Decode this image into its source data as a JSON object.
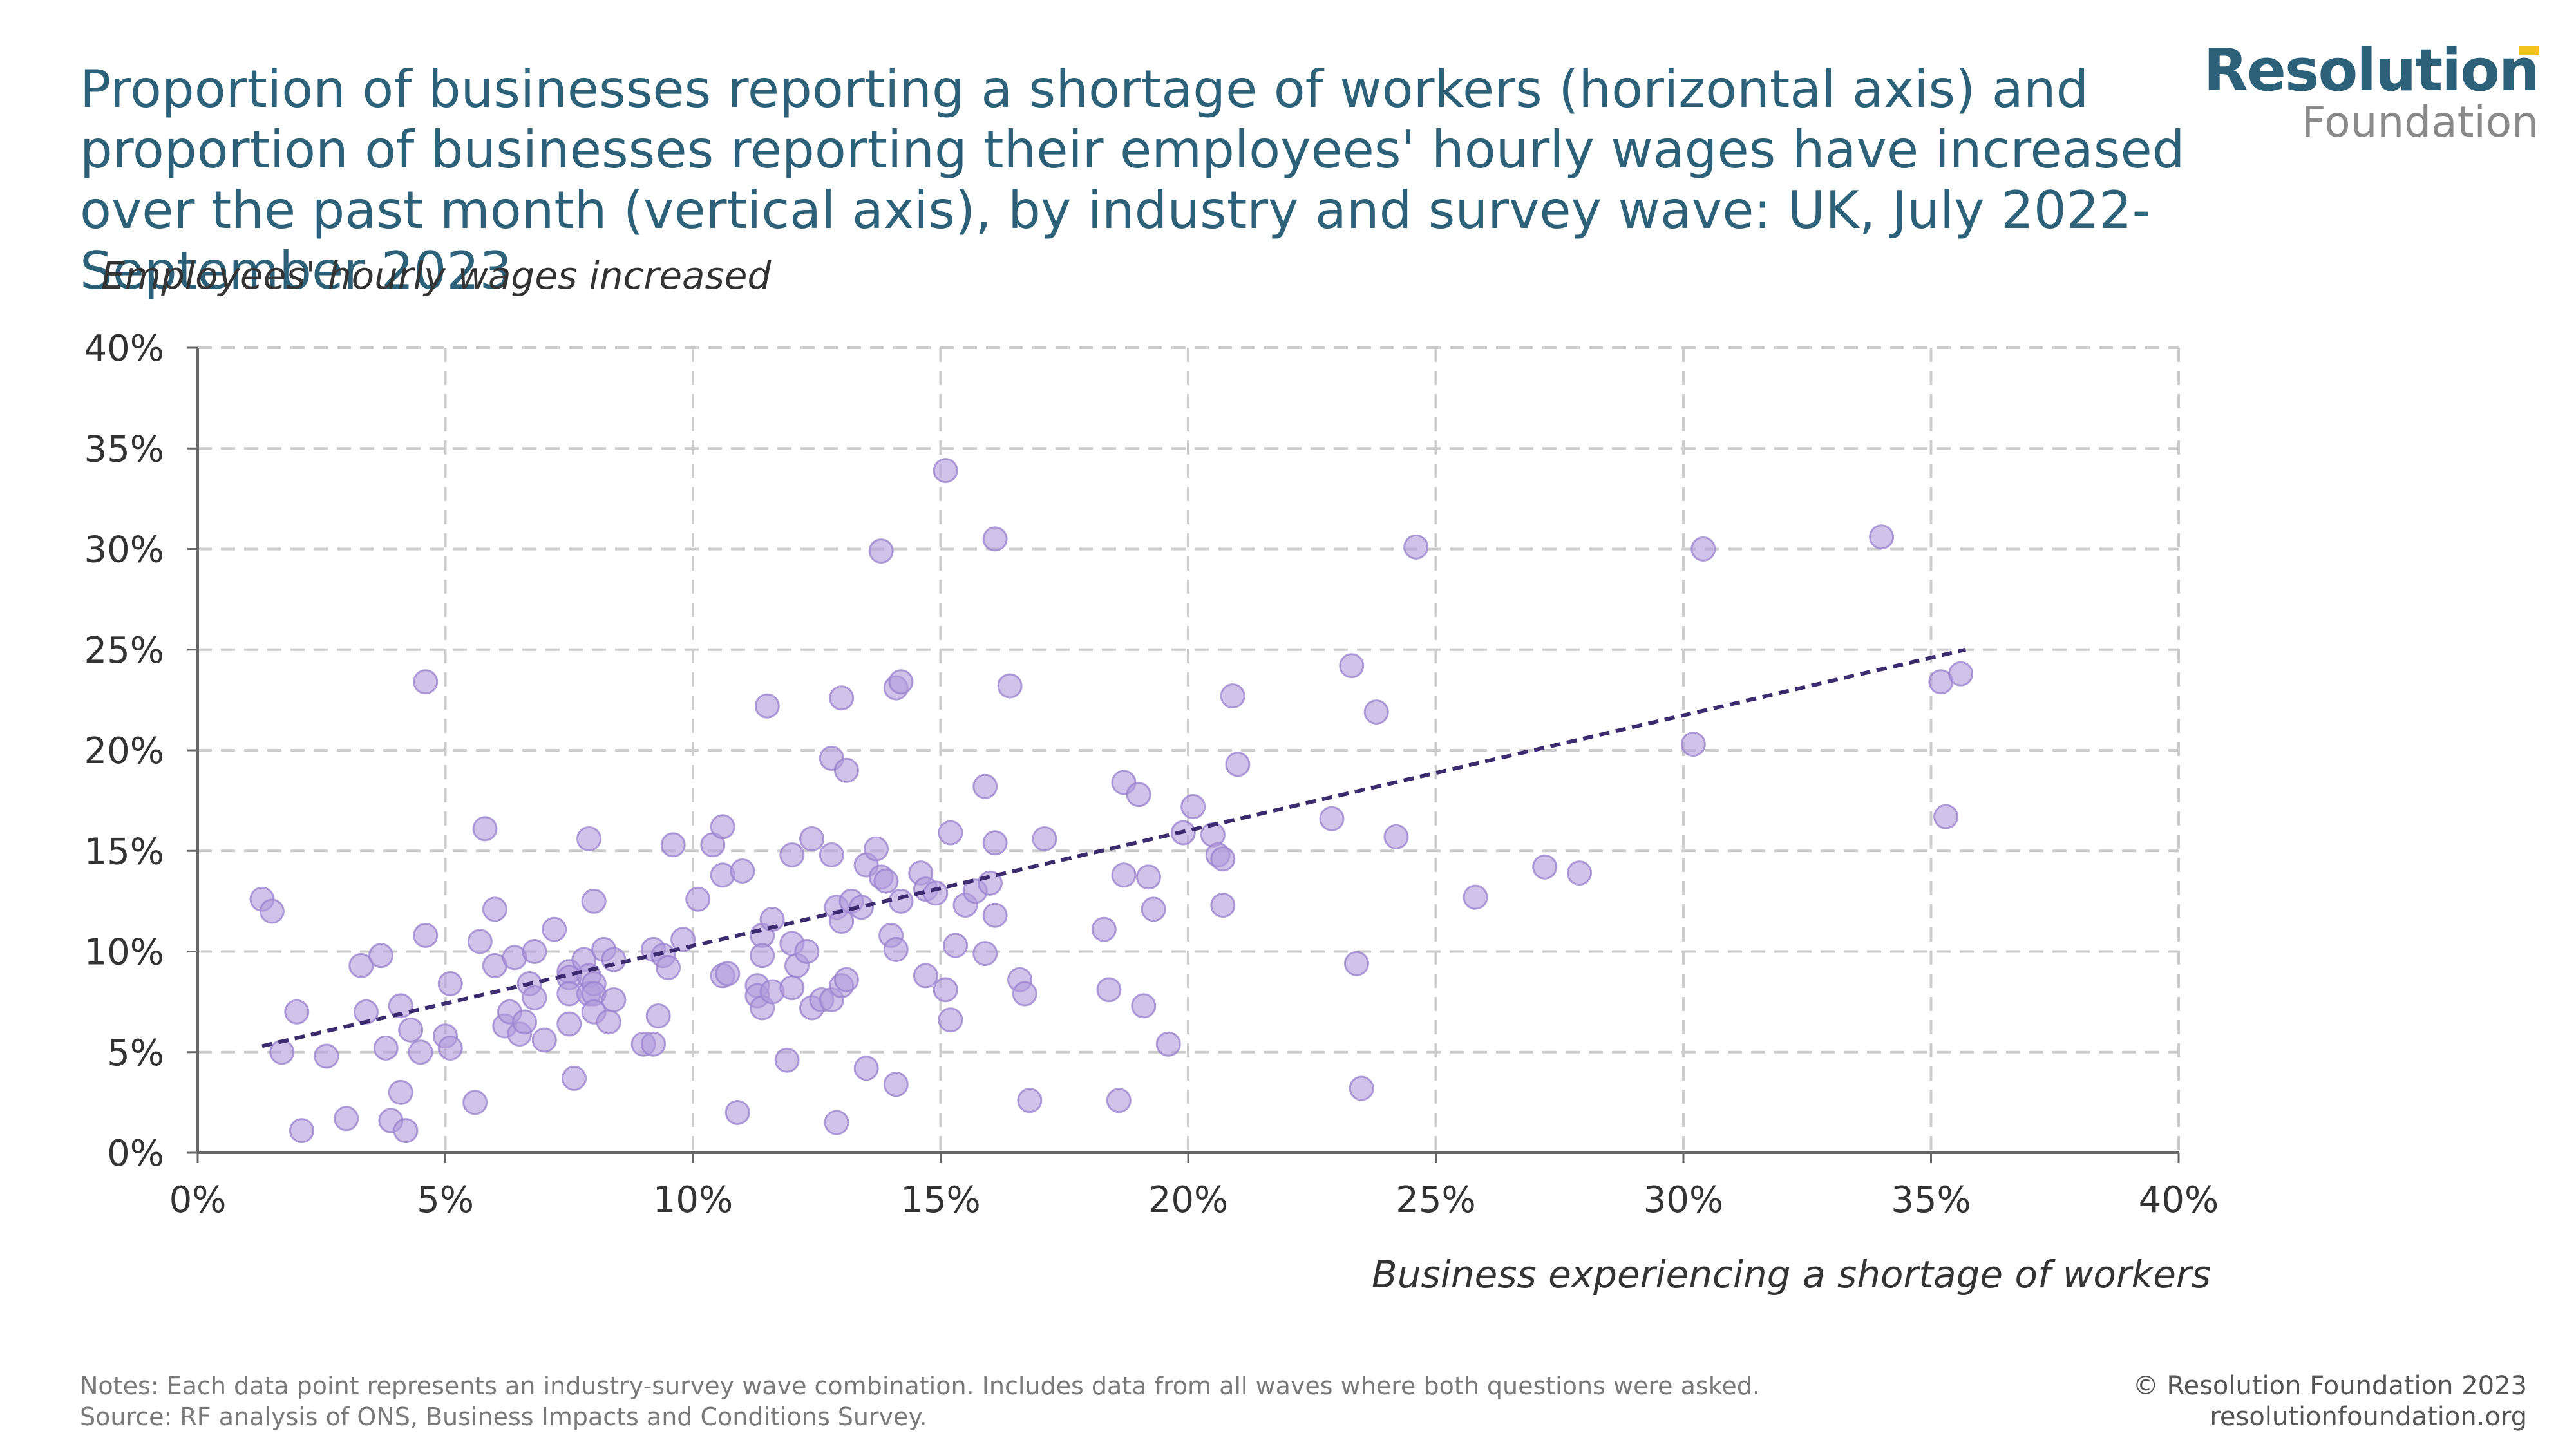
{
  "title": "Proportion of businesses reporting a shortage of workers (horizontal axis) and proportion of businesses reporting their employees' hourly wages have increased over the past month (vertical axis), by industry and survey wave: UK, July 2022-September 2023",
  "logo": {
    "line1": "Resolution",
    "line2": "Foundation",
    "accent_color": "#f1c21b"
  },
  "notes": "Notes: Each data point represents an industry-survey wave combination. Includes data from all waves where both questions were asked.",
  "source": "Source: RF analysis of ONS, Business Impacts and Conditions Survey.",
  "copyright": "© Resolution Foundation 2023",
  "website": "resolutionfoundation.org",
  "colors": {
    "title": "#2d6179",
    "point": "#b39ddb",
    "point_edge": "#9c84d0",
    "trendline": "#3b2a6e",
    "grid": "#cccccc"
  },
  "chart_data": {
    "type": "scatter",
    "xlabel": "Business experiencing a shortage of workers",
    "ylabel": "Employees' hourly wages increased",
    "xlim": [
      0,
      40
    ],
    "ylim": [
      0,
      40
    ],
    "x_ticks": [
      "0%",
      "5%",
      "10%",
      "15%",
      "20%",
      "25%",
      "30%",
      "35%",
      "40%"
    ],
    "y_ticks": [
      "0%",
      "5%",
      "10%",
      "15%",
      "20%",
      "25%",
      "30%",
      "35%",
      "40%"
    ],
    "grid": true,
    "trendline": {
      "x": [
        1.3,
        35.7
      ],
      "y": [
        5.3,
        25.0
      ],
      "style": "dashed"
    },
    "points": [
      [
        1.3,
        12.6
      ],
      [
        1.5,
        12.0
      ],
      [
        1.7,
        5.0
      ],
      [
        2.0,
        7.0
      ],
      [
        2.1,
        1.1
      ],
      [
        2.6,
        4.8
      ],
      [
        3.0,
        1.7
      ],
      [
        3.3,
        9.3
      ],
      [
        3.4,
        7.0
      ],
      [
        3.7,
        9.8
      ],
      [
        3.8,
        5.2
      ],
      [
        3.9,
        1.6
      ],
      [
        4.1,
        7.3
      ],
      [
        4.1,
        3.0
      ],
      [
        4.2,
        1.1
      ],
      [
        4.3,
        6.1
      ],
      [
        4.5,
        5.0
      ],
      [
        4.6,
        23.4
      ],
      [
        4.6,
        10.8
      ],
      [
        5.0,
        5.8
      ],
      [
        5.1,
        8.4
      ],
      [
        5.1,
        5.2
      ],
      [
        5.6,
        2.5
      ],
      [
        5.7,
        10.5
      ],
      [
        5.8,
        16.1
      ],
      [
        6.0,
        12.1
      ],
      [
        6.0,
        9.3
      ],
      [
        6.2,
        6.3
      ],
      [
        6.3,
        7.0
      ],
      [
        6.4,
        9.7
      ],
      [
        6.5,
        5.9
      ],
      [
        6.6,
        6.5
      ],
      [
        6.7,
        8.4
      ],
      [
        6.8,
        10.0
      ],
      [
        6.8,
        7.7
      ],
      [
        7.0,
        5.6
      ],
      [
        7.2,
        11.1
      ],
      [
        7.5,
        9.0
      ],
      [
        7.5,
        8.7
      ],
      [
        7.5,
        7.9
      ],
      [
        7.5,
        6.4
      ],
      [
        7.6,
        3.7
      ],
      [
        7.8,
        9.6
      ],
      [
        7.9,
        15.6
      ],
      [
        7.9,
        8.8
      ],
      [
        7.9,
        7.9
      ],
      [
        8.0,
        12.5
      ],
      [
        8.0,
        8.4
      ],
      [
        8.0,
        7.9
      ],
      [
        8.0,
        7.0
      ],
      [
        8.2,
        10.1
      ],
      [
        8.3,
        6.5
      ],
      [
        8.4,
        9.6
      ],
      [
        8.4,
        7.6
      ],
      [
        9.0,
        5.4
      ],
      [
        9.2,
        5.4
      ],
      [
        9.2,
        10.1
      ],
      [
        9.3,
        6.8
      ],
      [
        9.4,
        9.8
      ],
      [
        9.5,
        9.2
      ],
      [
        9.6,
        15.3
      ],
      [
        9.8,
        10.6
      ],
      [
        10.1,
        12.6
      ],
      [
        10.4,
        15.3
      ],
      [
        10.6,
        16.2
      ],
      [
        10.6,
        13.8
      ],
      [
        10.6,
        8.8
      ],
      [
        10.7,
        8.9
      ],
      [
        10.9,
        2.0
      ],
      [
        11.0,
        14.0
      ],
      [
        11.3,
        8.3
      ],
      [
        11.3,
        7.8
      ],
      [
        11.4,
        10.8
      ],
      [
        11.4,
        9.8
      ],
      [
        11.4,
        7.2
      ],
      [
        11.5,
        22.2
      ],
      [
        11.6,
        11.6
      ],
      [
        11.6,
        8.0
      ],
      [
        11.9,
        4.6
      ],
      [
        12.0,
        14.8
      ],
      [
        12.0,
        10.4
      ],
      [
        12.0,
        8.2
      ],
      [
        12.1,
        9.3
      ],
      [
        12.3,
        10.0
      ],
      [
        12.4,
        15.6
      ],
      [
        12.4,
        7.2
      ],
      [
        12.6,
        7.6
      ],
      [
        12.8,
        19.6
      ],
      [
        12.8,
        14.8
      ],
      [
        12.8,
        7.6
      ],
      [
        12.9,
        12.2
      ],
      [
        12.9,
        1.5
      ],
      [
        13.0,
        22.6
      ],
      [
        13.0,
        11.5
      ],
      [
        13.0,
        8.3
      ],
      [
        13.1,
        19.0
      ],
      [
        13.1,
        8.6
      ],
      [
        13.2,
        12.5
      ],
      [
        13.4,
        12.2
      ],
      [
        13.5,
        14.3
      ],
      [
        13.5,
        4.2
      ],
      [
        13.7,
        15.1
      ],
      [
        13.8,
        29.9
      ],
      [
        13.8,
        13.7
      ],
      [
        13.9,
        13.5
      ],
      [
        14.0,
        10.8
      ],
      [
        14.1,
        23.1
      ],
      [
        14.1,
        10.1
      ],
      [
        14.1,
        3.4
      ],
      [
        14.2,
        23.4
      ],
      [
        14.2,
        12.5
      ],
      [
        14.6,
        13.9
      ],
      [
        14.7,
        13.1
      ],
      [
        14.7,
        8.8
      ],
      [
        14.9,
        12.9
      ],
      [
        15.1,
        33.9
      ],
      [
        15.1,
        8.1
      ],
      [
        15.2,
        15.9
      ],
      [
        15.2,
        6.6
      ],
      [
        15.3,
        10.3
      ],
      [
        15.5,
        12.3
      ],
      [
        15.7,
        13.0
      ],
      [
        15.9,
        18.2
      ],
      [
        15.9,
        9.9
      ],
      [
        16.0,
        13.4
      ],
      [
        16.1,
        30.5
      ],
      [
        16.1,
        15.4
      ],
      [
        16.1,
        11.8
      ],
      [
        16.4,
        23.2
      ],
      [
        16.6,
        8.6
      ],
      [
        16.7,
        7.9
      ],
      [
        16.8,
        2.6
      ],
      [
        17.1,
        15.6
      ],
      [
        18.3,
        11.1
      ],
      [
        18.4,
        8.1
      ],
      [
        18.6,
        2.6
      ],
      [
        18.7,
        18.4
      ],
      [
        18.7,
        13.8
      ],
      [
        19.0,
        17.8
      ],
      [
        19.1,
        7.3
      ],
      [
        19.2,
        13.7
      ],
      [
        19.3,
        12.1
      ],
      [
        19.6,
        5.4
      ],
      [
        19.9,
        15.9
      ],
      [
        20.1,
        17.2
      ],
      [
        20.5,
        15.8
      ],
      [
        20.6,
        14.8
      ],
      [
        20.7,
        14.6
      ],
      [
        20.7,
        12.3
      ],
      [
        20.9,
        22.7
      ],
      [
        21.0,
        19.3
      ],
      [
        22.9,
        16.6
      ],
      [
        23.3,
        24.2
      ],
      [
        23.4,
        9.4
      ],
      [
        23.5,
        3.2
      ],
      [
        23.8,
        21.9
      ],
      [
        24.2,
        15.7
      ],
      [
        24.6,
        30.1
      ],
      [
        25.8,
        12.7
      ],
      [
        27.2,
        14.2
      ],
      [
        27.9,
        13.9
      ],
      [
        30.2,
        20.3
      ],
      [
        30.4,
        30.0
      ],
      [
        34.0,
        30.6
      ],
      [
        35.2,
        23.4
      ],
      [
        35.3,
        16.7
      ],
      [
        35.6,
        23.8
      ]
    ]
  }
}
